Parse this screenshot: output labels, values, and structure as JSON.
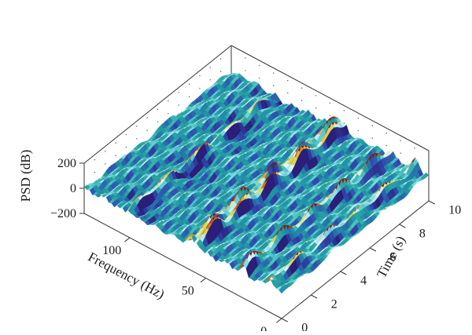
{
  "chart_data": {
    "type": "surface",
    "title": "",
    "xlabel": "Frequency (Hz)",
    "ylabel": "Time (s)",
    "zlabel": "PSD (dB)",
    "xlim": [
      0,
      130
    ],
    "ylim": [
      0,
      10
    ],
    "zlim": [
      -200,
      200
    ],
    "xticks": [
      0,
      50,
      100
    ],
    "xtick_labels": [
      "0",
      "50",
      "100"
    ],
    "yticks": [
      0,
      2,
      4,
      6,
      8,
      10
    ],
    "ytick_labels": [
      "0",
      "2",
      "4",
      "6",
      "8",
      "10"
    ],
    "zticks": [
      -200,
      0,
      200
    ],
    "ztick_labels": [
      "−200",
      "0",
      "200"
    ],
    "colormap": [
      "#2a1e7a",
      "#2f4fb0",
      "#1f8da8",
      "#2aa6a0",
      "#6fd6e0",
      "#e8f7ff",
      "#c8e070",
      "#e8c840",
      "#d06018",
      "#8a1a08"
    ],
    "box_color": "#333333",
    "grid": false,
    "ridges": [
      {
        "frequency": 8,
        "amplitude": 80
      },
      {
        "frequency": 25,
        "amplitude": 110
      },
      {
        "frequency": 55,
        "amplitude": 150
      },
      {
        "frequency": 60,
        "amplitude": 120
      },
      {
        "frequency": 100,
        "amplitude": 90
      }
    ]
  }
}
